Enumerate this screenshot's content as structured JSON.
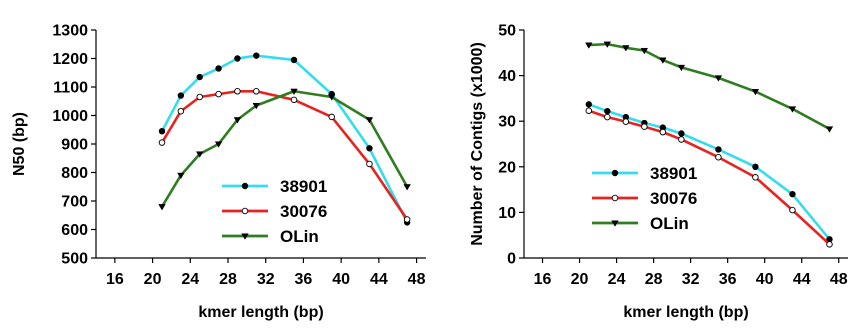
{
  "chart_data": [
    {
      "type": "line",
      "title": "",
      "xlabel": "kmer length (bp)",
      "ylabel": "N50 (bp)",
      "xlim": [
        14,
        49
      ],
      "ylim": [
        500,
        1300
      ],
      "xticks": [
        16,
        20,
        24,
        28,
        32,
        36,
        40,
        44,
        48
      ],
      "yticks": [
        500,
        600,
        700,
        800,
        900,
        1000,
        1100,
        1200,
        1300
      ],
      "legend": "bottom-center",
      "grid": false,
      "series": [
        {
          "name": "38901",
          "color": "#33ddee",
          "marker": "filled-circle",
          "x": [
            21,
            23,
            25,
            27,
            29,
            31,
            35,
            39,
            43,
            47
          ],
          "y": [
            945,
            1070,
            1135,
            1165,
            1200,
            1210,
            1195,
            1075,
            885,
            625
          ]
        },
        {
          "name": "30076",
          "color": "#e8231f",
          "marker": "open-circle",
          "x": [
            21,
            23,
            25,
            27,
            29,
            31,
            35,
            39,
            43,
            47
          ],
          "y": [
            905,
            1015,
            1065,
            1075,
            1085,
            1085,
            1055,
            995,
            830,
            635
          ]
        },
        {
          "name": "OLin",
          "color": "#2e7d20",
          "marker": "filled-triangle-down",
          "x": [
            21,
            23,
            25,
            27,
            29,
            31,
            35,
            39,
            43,
            47
          ],
          "y": [
            680,
            790,
            865,
            900,
            985,
            1035,
            1085,
            1065,
            985,
            750
          ]
        }
      ]
    },
    {
      "type": "line",
      "title": "",
      "xlabel": "kmer length (bp)",
      "ylabel": "Number of Contigs (x1000)",
      "xlim": [
        14,
        49
      ],
      "ylim": [
        0,
        50
      ],
      "xticks": [
        16,
        20,
        24,
        28,
        32,
        36,
        40,
        44,
        48
      ],
      "yticks": [
        0,
        10,
        20,
        30,
        40,
        50
      ],
      "legend": "bottom-left",
      "grid": false,
      "series": [
        {
          "name": "38901",
          "color": "#33ddee",
          "marker": "filled-circle",
          "x": [
            21,
            23,
            25,
            27,
            29,
            31,
            35,
            39,
            43,
            47
          ],
          "y": [
            33.7,
            32.2,
            30.9,
            29.6,
            28.6,
            27.3,
            23.8,
            20.0,
            14.0,
            4.1
          ]
        },
        {
          "name": "30076",
          "color": "#e8231f",
          "marker": "open-circle",
          "x": [
            21,
            23,
            25,
            27,
            29,
            31,
            35,
            39,
            43,
            47
          ],
          "y": [
            32.3,
            30.9,
            29.9,
            28.8,
            27.6,
            26.0,
            22.1,
            17.7,
            10.5,
            3.0
          ]
        },
        {
          "name": "OLin",
          "color": "#2e7d20",
          "marker": "filled-triangle-down",
          "x": [
            21,
            23,
            25,
            27,
            29,
            31,
            35,
            39,
            43,
            47
          ],
          "y": [
            46.7,
            46.9,
            46.1,
            45.5,
            43.4,
            41.8,
            39.5,
            36.5,
            32.7,
            28.3
          ]
        }
      ]
    }
  ]
}
